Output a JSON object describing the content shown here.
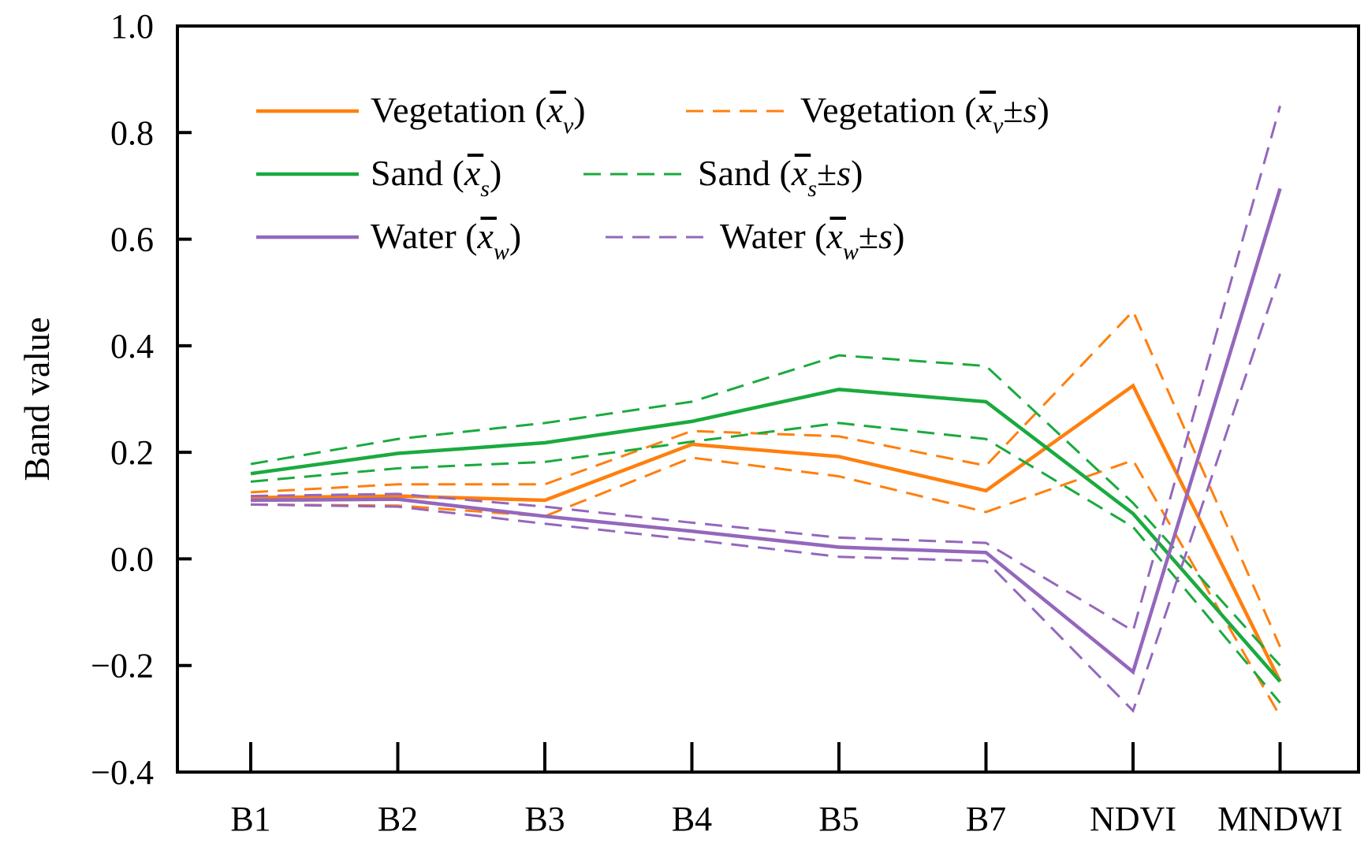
{
  "chart_data": {
    "type": "line",
    "title": "",
    "xlabel": "",
    "ylabel": "Band value",
    "ylim": [
      -0.4,
      1.0
    ],
    "yticks": [
      "1.0",
      "0.8",
      "0.6",
      "0.4",
      "0.2",
      "0.0",
      "−0.2",
      "−0.4"
    ],
    "ytick_values": [
      1.0,
      0.8,
      0.6,
      0.4,
      0.2,
      0.0,
      -0.2,
      -0.4
    ],
    "categories": [
      "B1",
      "B2",
      "B3",
      "B4",
      "B5",
      "B7",
      "NDVI",
      "MNDWI"
    ],
    "grid": false,
    "legend_position": "top-left",
    "series": [
      {
        "name": "Vegetation (x̄v)",
        "kind": "mean",
        "color": "#ff7f0e",
        "legend": {
          "label": "Vegetation",
          "sub": "v",
          "suffix": ""
        },
        "values": [
          0.115,
          0.118,
          0.11,
          0.215,
          0.192,
          0.128,
          0.325,
          -0.23
        ]
      },
      {
        "name": "Vegetation (x̄v+s)",
        "kind": "upper",
        "color": "#ff7f0e",
        "legend": {
          "label": "Vegetation",
          "sub": "v",
          "suffix": "±s"
        },
        "values": [
          0.125,
          0.14,
          0.14,
          0.24,
          0.23,
          0.175,
          0.465,
          -0.165
        ]
      },
      {
        "name": "Vegetation (x̄v−s)",
        "kind": "lower",
        "color": "#ff7f0e",
        "values": [
          0.102,
          0.1,
          0.08,
          0.19,
          0.155,
          0.088,
          0.185,
          -0.295
        ]
      },
      {
        "name": "Sand (x̄s)",
        "kind": "mean",
        "color": "#1aaa3e",
        "legend": {
          "label": "Sand",
          "sub": "s",
          "suffix": ""
        },
        "values": [
          0.16,
          0.198,
          0.218,
          0.258,
          0.318,
          0.295,
          0.085,
          -0.23
        ]
      },
      {
        "name": "Sand (x̄s+s)",
        "kind": "upper",
        "color": "#1aaa3e",
        "legend": {
          "label": "Sand",
          "sub": "s",
          "suffix": "±s"
        },
        "values": [
          0.178,
          0.225,
          0.255,
          0.295,
          0.382,
          0.362,
          0.105,
          -0.2
        ]
      },
      {
        "name": "Sand (x̄s−s)",
        "kind": "lower",
        "color": "#1aaa3e",
        "values": [
          0.145,
          0.17,
          0.182,
          0.22,
          0.255,
          0.225,
          0.06,
          -0.27
        ]
      },
      {
        "name": "Water (x̄w)",
        "kind": "mean",
        "color": "#9467bd",
        "legend": {
          "label": "Water",
          "sub": "w",
          "suffix": ""
        },
        "values": [
          0.11,
          0.112,
          0.08,
          0.052,
          0.022,
          0.012,
          -0.212,
          0.695
        ]
      },
      {
        "name": "Water (x̄w+s)",
        "kind": "upper",
        "color": "#9467bd",
        "legend": {
          "label": "Water",
          "sub": "w",
          "suffix": "±s"
        },
        "values": [
          0.118,
          0.122,
          0.098,
          0.068,
          0.04,
          0.03,
          -0.135,
          0.85
        ]
      },
      {
        "name": "Water (x̄w−s)",
        "kind": "lower",
        "color": "#9467bd",
        "values": [
          0.102,
          0.098,
          0.066,
          0.036,
          0.004,
          -0.004,
          -0.285,
          0.535
        ]
      }
    ]
  }
}
